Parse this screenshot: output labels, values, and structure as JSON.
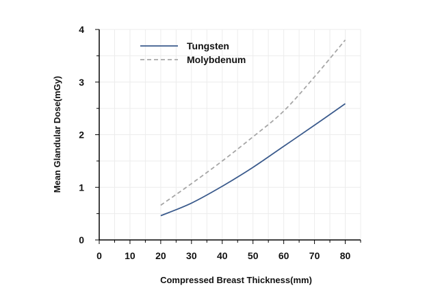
{
  "chart_data": {
    "type": "line",
    "title": "",
    "xlabel": "Compressed Breast Thickness(mm)",
    "ylabel": "Mean Glandular Dose(mGy)",
    "xlim": [
      0,
      85
    ],
    "ylim": [
      0,
      4
    ],
    "xticks": [
      0,
      10,
      20,
      30,
      40,
      50,
      60,
      70,
      80
    ],
    "yticks": [
      0,
      1,
      2,
      3,
      4
    ],
    "grid": true,
    "legend_position": "top-left",
    "x": [
      20,
      30,
      40,
      50,
      60,
      70,
      80
    ],
    "series": [
      {
        "name": "Tungsten",
        "color": "#3a5a8c",
        "line_style": "solid",
        "values": [
          0.46,
          0.7,
          1.02,
          1.38,
          1.78,
          2.18,
          2.59
        ]
      },
      {
        "name": "Molybdenum",
        "color": "#a6a6a6",
        "line_style": "dashed",
        "values": [
          0.66,
          1.07,
          1.5,
          1.96,
          2.45,
          3.1,
          3.8
        ]
      }
    ]
  }
}
